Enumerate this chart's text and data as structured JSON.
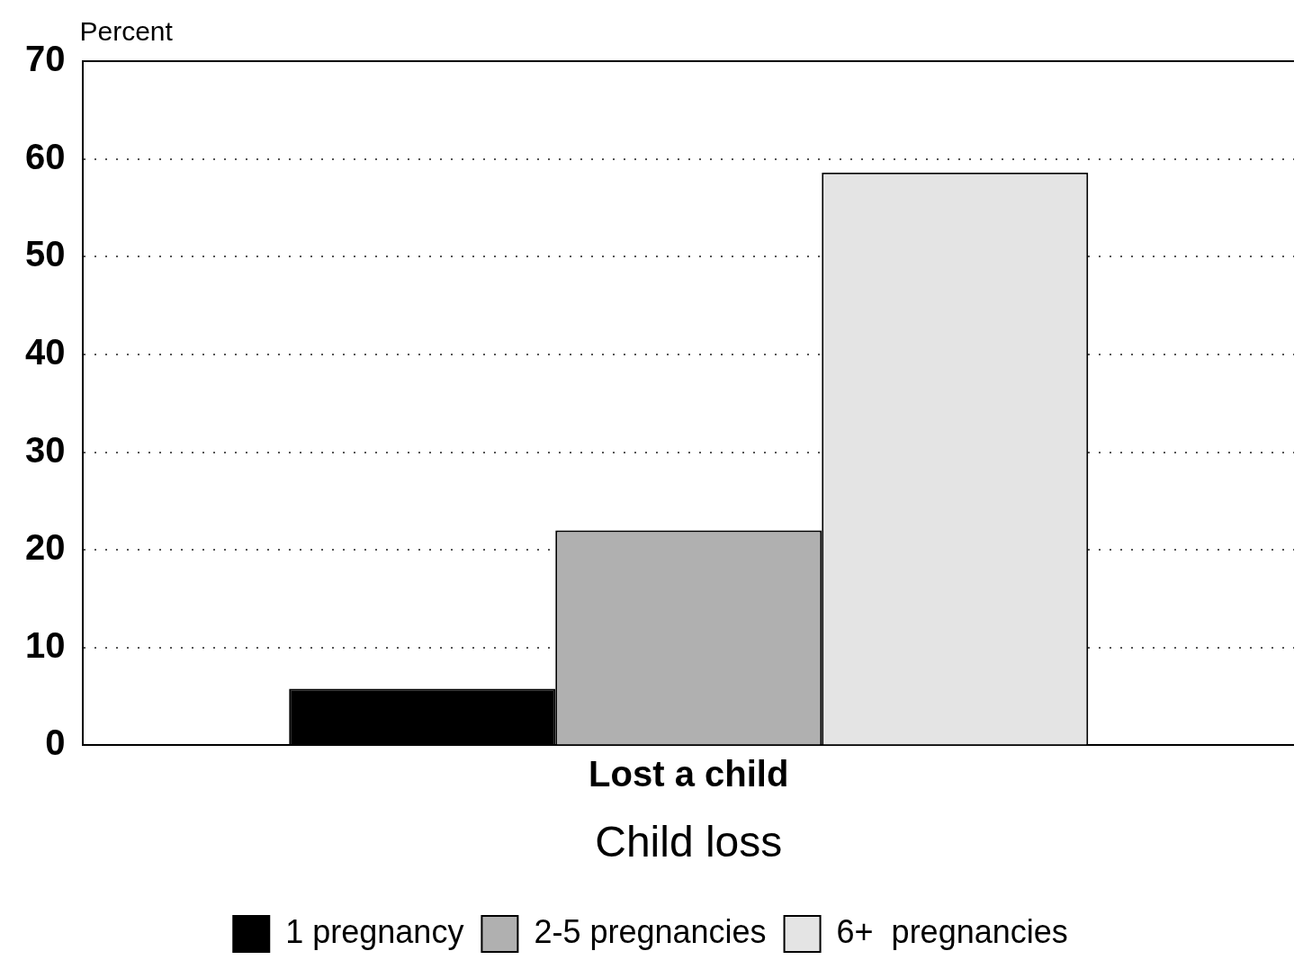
{
  "chart_data": {
    "type": "bar",
    "xlabel": "Child loss",
    "ylabel": "Percent",
    "categories": [
      "Lost a child"
    ],
    "series": [
      {
        "name": "1 pregnancy",
        "color": "#000000",
        "values": [
          5.8
        ]
      },
      {
        "name": "2-5 pregnancies",
        "color": "#b0b0b0",
        "values": [
          22
        ]
      },
      {
        "name": "6+  pregnancies",
        "color": "#e4e4e4",
        "values": [
          58.6
        ]
      }
    ],
    "ylim": [
      0,
      70
    ],
    "yticks": [
      0,
      10,
      20,
      30,
      40,
      50,
      60,
      70
    ],
    "grid": "y",
    "legend": "bottom"
  }
}
